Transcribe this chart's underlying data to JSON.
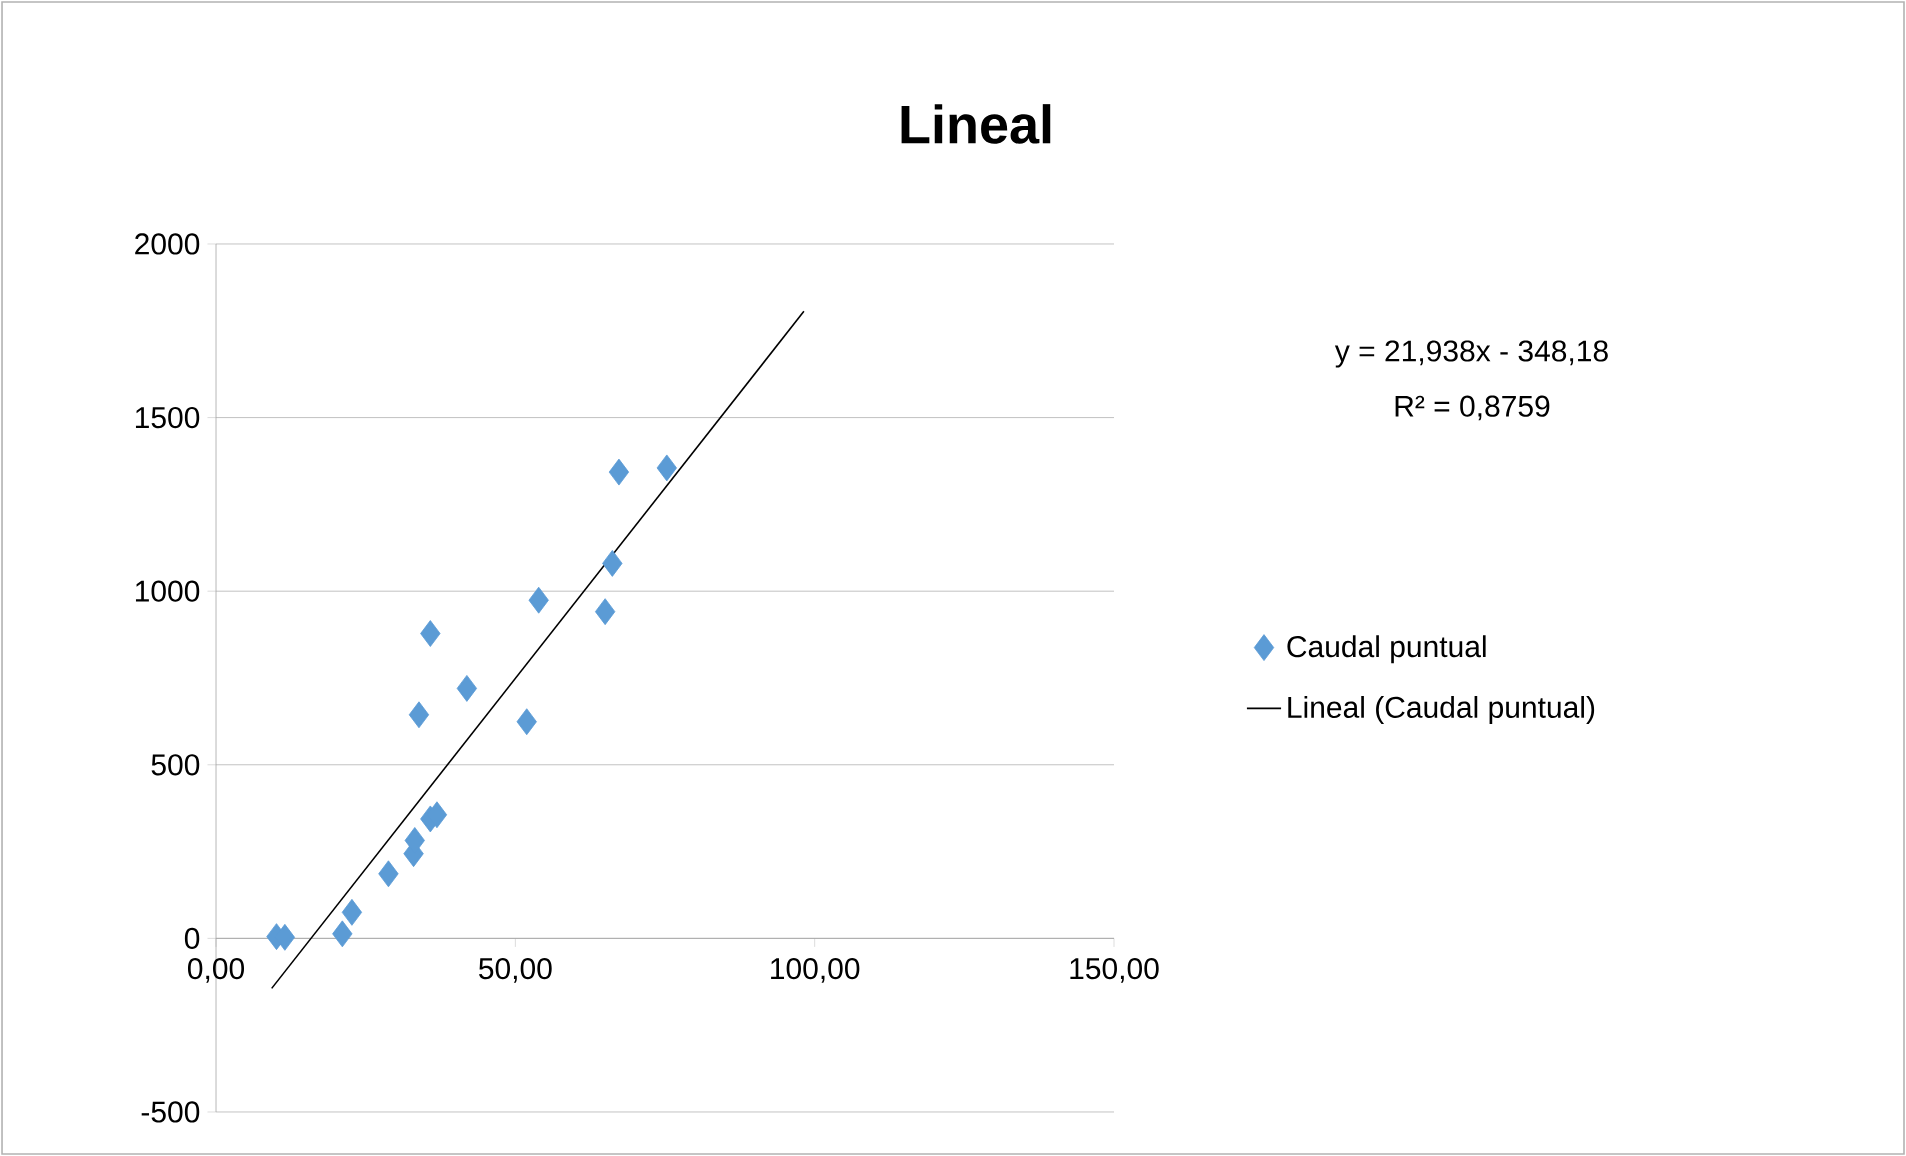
{
  "chart_data": {
    "type": "scatter",
    "title": "Lineal",
    "series": [
      {
        "name": "Caudal puntual",
        "color": "#5b9bd5",
        "marker": "diamond",
        "x": [
          10.1,
          11.5,
          21.1,
          22.7,
          28.8,
          33.0,
          33.2,
          35.8,
          36.9,
          33.9,
          35.8,
          41.9,
          51.9,
          53.9,
          65.0,
          66.2,
          67.3,
          75.3
        ],
        "values": [
          5,
          3,
          13,
          75,
          186,
          244,
          282,
          344,
          356,
          644,
          878,
          720,
          624,
          974,
          941,
          1080,
          1343,
          1355
        ]
      },
      {
        "name": "Lineal (Caudal puntual)",
        "type": "line",
        "color": "#000000",
        "marker": "none",
        "x": [
          9.3,
          98.2
        ],
        "values": [
          -144,
          1806
        ]
      }
    ],
    "xlim": [
      0,
      150
    ],
    "ylim": [
      -500,
      2000
    ],
    "xticks": [
      {
        "value": 0,
        "label": "0,00"
      },
      {
        "value": 50,
        "label": "50,00"
      },
      {
        "value": 100,
        "label": "100,00"
      },
      {
        "value": 150,
        "label": "150,00"
      }
    ],
    "yticks": [
      -500,
      0,
      500,
      1000,
      1500,
      2000
    ],
    "grid": "y",
    "legend": "right",
    "annotations": [
      "y = 21,938x - 348,18",
      "R² = 0,8759"
    ]
  }
}
